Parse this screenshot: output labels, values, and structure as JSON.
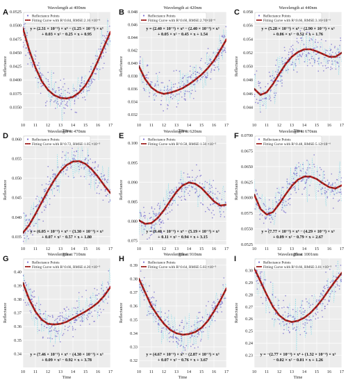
{
  "figure": {
    "xlabel": "Time",
    "ylabel": "Reflectance",
    "legend_points": "Reflectance Points",
    "colors": {
      "points": "#7b6fd0",
      "fit_red": "#c0201e",
      "fit_dash": "#2b2b2b",
      "cyan_trace": "#5ad6e6",
      "plot_bg": "#ececec"
    }
  },
  "chart_data": [
    {
      "letter": "A",
      "type": "scatter",
      "title": "Wavelength at 400nm",
      "xlim": [
        10,
        17
      ],
      "xticks": [
        10,
        11,
        12,
        13,
        14,
        15,
        16,
        17
      ],
      "ylim": [
        0.0325,
        0.0525
      ],
      "yticks": [
        "0.0350",
        "0.0375",
        "0.0400",
        "0.0425",
        "0.0450",
        "0.0475",
        "0.0500",
        "0.0525"
      ],
      "ytick_values": [
        0.035,
        0.0375,
        0.04,
        0.0425,
        0.045,
        0.0475,
        0.05,
        0.0525
      ],
      "fit_label": "Fitting Curve with R²:0.84, RMSE:2.16 ×10⁻⁶",
      "equation": [
        "y = (2.31 × 10⁻⁵) × x⁴ − (1.25 × 10⁻³) × x³",
        "+ 0.03 × x² − 0.25 × x + 0.95"
      ],
      "curve": {
        "x": [
          10,
          10.5,
          11,
          11.5,
          12,
          12.5,
          13,
          13.5,
          14,
          14.5,
          15,
          15.5,
          16,
          16.5,
          17
        ],
        "y": [
          0.0495,
          0.0455,
          0.0423,
          0.0398,
          0.0382,
          0.0372,
          0.0367,
          0.0366,
          0.0369,
          0.0377,
          0.039,
          0.041,
          0.0435,
          0.0462,
          0.0488
        ]
      }
    },
    {
      "letter": "B",
      "type": "scatter",
      "title": "Wavelength at 420nm",
      "xlim": [
        10,
        17
      ],
      "xticks": [
        10,
        11,
        12,
        13,
        14,
        15,
        16,
        17
      ],
      "ylim": [
        0.031,
        0.048
      ],
      "yticks": [
        "0.032",
        "0.034",
        "0.036",
        "0.038",
        "0.040",
        "0.042",
        "0.044",
        "0.046",
        "0.048"
      ],
      "ytick_values": [
        0.032,
        0.034,
        0.036,
        0.038,
        0.04,
        0.042,
        0.044,
        0.046,
        0.048
      ],
      "fit_label": "Fitting Curve with R²:0.60, RMSE:2.70×10⁻⁶",
      "equation": [
        "y = (2.40 × 10⁻⁵) × x⁴ − (2.40 × 10⁻³) × x³",
        "+ 0.05 × x² − 0.45 × x + 1.54"
      ],
      "curve": {
        "x": [
          10,
          10.5,
          11,
          11.5,
          12,
          12.5,
          13,
          13.5,
          14,
          14.5,
          15,
          15.5,
          16,
          16.5,
          17
        ],
        "y": [
          0.0395,
          0.0375,
          0.0362,
          0.0355,
          0.0352,
          0.0354,
          0.0357,
          0.0361,
          0.0367,
          0.0374,
          0.0382,
          0.0392,
          0.0404,
          0.042,
          0.0437
        ]
      }
    },
    {
      "letter": "C",
      "type": "scatter",
      "title": "Wavelength at 440nm",
      "xlim": [
        10,
        17
      ],
      "xticks": [
        10,
        11,
        12,
        13,
        14,
        15,
        16,
        17
      ],
      "ylim": [
        0.042,
        0.058
      ],
      "yticks": [
        "0.044",
        "0.046",
        "0.048",
        "0.050",
        "0.052",
        "0.054",
        "0.056",
        "0.058"
      ],
      "ytick_values": [
        0.044,
        0.046,
        0.048,
        0.05,
        0.052,
        0.054,
        0.056,
        0.058
      ],
      "fit_label": "Fitting Curve with R²:0.66, RMSE:3.16×10⁻⁶",
      "equation": [
        "y = (5.28 × 10⁻⁵) × x⁴ − (2.90 × 10⁻³) × x³",
        "+ 0.06 × x² − 0.52 × x + 1.76"
      ],
      "curve": {
        "x": [
          10,
          10.5,
          11,
          11.5,
          12,
          12.5,
          13,
          13.5,
          14,
          14.5,
          15,
          15.5,
          16,
          16.5,
          17
        ],
        "y": [
          0.0467,
          0.0458,
          0.0462,
          0.0474,
          0.0489,
          0.0503,
          0.0514,
          0.0521,
          0.0525,
          0.0525,
          0.0522,
          0.0518,
          0.0514,
          0.0514,
          0.052
        ]
      }
    },
    {
      "letter": "D",
      "type": "scatter",
      "title": "Wavelength at 470nm",
      "xlim": [
        10,
        17
      ],
      "xticks": [
        10,
        11,
        12,
        13,
        14,
        15,
        16,
        17
      ],
      "ylim": [
        0.033,
        0.061
      ],
      "yticks": [
        "0.035",
        "0.040",
        "0.045",
        "0.050",
        "0.055",
        "0.060"
      ],
      "ytick_values": [
        0.035,
        0.04,
        0.045,
        0.05,
        0.055,
        0.06
      ],
      "fit_label": "Fitting Curve with R²:0.72, RMSE:1.05 ×10⁻⁵",
      "equation": [
        "y = (6.05 × 10⁻⁵) × x⁴ − (3.30 × 10⁻³) × x³",
        "+ 0.07 × x² − 0.57 × x + 1.80"
      ],
      "curve": {
        "x": [
          10,
          10.5,
          11,
          11.5,
          12,
          12.5,
          13,
          13.5,
          14,
          14.5,
          15,
          15.5,
          16,
          16.5,
          17
        ],
        "y": [
          0.036,
          0.038,
          0.0408,
          0.0438,
          0.0468,
          0.0495,
          0.0518,
          0.0534,
          0.0543,
          0.0544,
          0.0537,
          0.0523,
          0.0504,
          0.0482,
          0.0462
        ]
      }
    },
    {
      "letter": "E",
      "type": "scatter",
      "title": "Wavelength at 620nm",
      "xlim": [
        10,
        17
      ],
      "xticks": [
        10,
        11,
        12,
        13,
        14,
        15,
        16,
        17
      ],
      "ylim": [
        0.074,
        0.102
      ],
      "yticks": [
        "0.075",
        "0.080",
        "0.085",
        "0.090",
        "0.095",
        "0.100"
      ],
      "ytick_values": [
        0.075,
        0.08,
        0.085,
        0.09,
        0.095,
        0.1
      ],
      "fit_label": "Fitting Curve with R²:0.58, RMSE:1.50 ×10⁻⁵",
      "equation": [
        "y = (9.40 × 10⁻⁵) × x⁴ − (5.19 × 10⁻³) × x³",
        "+ 0.11 × x² − 0.94 × x + 3.15"
      ],
      "curve": {
        "x": [
          10,
          10.5,
          11,
          11.5,
          12,
          12.5,
          13,
          13.5,
          14,
          14.5,
          15,
          15.5,
          16,
          16.5,
          17
        ],
        "y": [
          0.0802,
          0.0793,
          0.0795,
          0.0808,
          0.0828,
          0.0852,
          0.0875,
          0.0892,
          0.0899,
          0.0896,
          0.0885,
          0.0868,
          0.0851,
          0.084,
          0.0842
        ]
      }
    },
    {
      "letter": "F",
      "type": "scatter",
      "title": "Wavelength at 670nm",
      "xlim": [
        10,
        17
      ],
      "xticks": [
        10,
        11,
        12,
        13,
        14,
        15,
        16,
        17
      ],
      "ylim": [
        0.0525,
        0.07
      ],
      "yticks": [
        "0.0525",
        "0.0550",
        "0.0575",
        "0.0600",
        "0.0625",
        "0.0650",
        "0.0675",
        "0.0700"
      ],
      "ytick_values": [
        0.0525,
        0.055,
        0.0575,
        0.06,
        0.0625,
        0.065,
        0.0675,
        0.07
      ],
      "fit_label": "Fitting Curve with R²:0.48, RMSE:5.12×10⁻⁶",
      "equation": [
        "y = (7.77 × 10⁻⁵) × x⁴ − (4.29 × 10⁻³) × x³",
        "+ 0.09 × x² − 0.79 × x + 2.67"
      ],
      "curve": {
        "x": [
          10,
          10.5,
          11,
          11.5,
          12,
          12.5,
          13,
          13.5,
          14,
          14.5,
          15,
          15.5,
          16,
          16.5,
          17
        ],
        "y": [
          0.0605,
          0.0582,
          0.0573,
          0.0577,
          0.059,
          0.0605,
          0.0619,
          0.0629,
          0.0634,
          0.0634,
          0.063,
          0.0623,
          0.0617,
          0.0615,
          0.062
        ]
      }
    },
    {
      "letter": "G",
      "type": "scatter",
      "title": "Wavelength at 710nm",
      "xlim": [
        10,
        17
      ],
      "xticks": [
        10,
        11,
        12,
        13,
        14,
        15,
        16,
        17
      ],
      "ylim": [
        0.33,
        0.41
      ],
      "yticks": [
        "0.34",
        "0.35",
        "0.36",
        "0.37",
        "0.38",
        "0.39",
        "0.40"
      ],
      "ytick_values": [
        0.34,
        0.35,
        0.36,
        0.37,
        0.38,
        0.39,
        0.4
      ],
      "fit_label": "Fitting Curve with R²:0.66, RMSE:4.20 ×10⁻⁵",
      "equation": [
        "y = (7.46 × 10⁻⁵) × x⁴ − (4.30 × 10⁻³) × x³",
        "+ 0.09 × x² − 0.92 × x + 3.78"
      ],
      "curve": {
        "x": [
          10,
          10.5,
          11,
          11.5,
          12,
          12.5,
          13,
          13.5,
          14,
          14.5,
          15,
          15.5,
          16,
          16.5,
          17
        ],
        "y": [
          0.392,
          0.38,
          0.371,
          0.365,
          0.362,
          0.3615,
          0.362,
          0.3635,
          0.366,
          0.3685,
          0.371,
          0.374,
          0.3775,
          0.3825,
          0.389
        ]
      }
    },
    {
      "letter": "H",
      "type": "scatter",
      "title": "Wavelength at 910nm",
      "xlim": [
        10,
        17
      ],
      "xticks": [
        10,
        11,
        12,
        13,
        14,
        15,
        16,
        17
      ],
      "ylim": [
        0.315,
        0.395
      ],
      "yticks": [
        "0.32",
        "0.33",
        "0.34",
        "0.35",
        "0.36",
        "0.37",
        "0.38",
        "0.39"
      ],
      "ytick_values": [
        0.32,
        0.33,
        0.34,
        0.35,
        0.36,
        0.37,
        0.38,
        0.39
      ],
      "fit_label": "Fitting Curve with R²:0.64, RMSE:5.03 ×10⁻⁵",
      "equation": [
        "y = (4.67 × 10⁻⁵) × x⁴ − (2.87 × 10⁻³) × x³",
        "+ 0.07 × x² − 0.76 × x + 3.67"
      ],
      "curve": {
        "x": [
          10,
          10.5,
          11,
          11.5,
          12,
          12.5,
          13,
          13.5,
          14,
          14.5,
          15,
          15.5,
          16,
          16.5,
          17
        ],
        "y": [
          0.38,
          0.37,
          0.36,
          0.353,
          0.347,
          0.3425,
          0.34,
          0.339,
          0.3395,
          0.341,
          0.344,
          0.349,
          0.356,
          0.364,
          0.373
        ]
      }
    },
    {
      "letter": "I",
      "type": "scatter",
      "title": "Wavelength at 1001nm",
      "xlim": [
        10,
        17
      ],
      "xticks": [
        10,
        11,
        12,
        13,
        14,
        15,
        16,
        17
      ],
      "ylim": [
        0.22,
        0.31
      ],
      "yticks": [
        "0.23",
        "0.24",
        "0.25",
        "0.26",
        "0.27",
        "0.28",
        "0.29",
        "0.30"
      ],
      "ytick_values": [
        0.23,
        0.24,
        0.25,
        0.26,
        0.27,
        0.28,
        0.29,
        0.3
      ],
      "fit_label": "Fitting Curve with R²:0.66, RMSE:3.01 ×10⁻⁵",
      "equation": [
        "y = −(2.77 × 10⁻⁵) × x⁴ + (1.32 × 10⁻³) × x³",
        "− 0.02 × x² − 0.01 × x + 1.26"
      ],
      "curve": {
        "x": [
          10,
          10.5,
          11,
          11.5,
          12,
          12.5,
          13,
          13.5,
          14,
          14.5,
          15,
          15.5,
          16,
          16.5,
          17
        ],
        "y": [
          0.302,
          0.291,
          0.28,
          0.27,
          0.263,
          0.259,
          0.2575,
          0.2585,
          0.261,
          0.265,
          0.2705,
          0.277,
          0.2845,
          0.2915,
          0.298
        ]
      }
    }
  ]
}
